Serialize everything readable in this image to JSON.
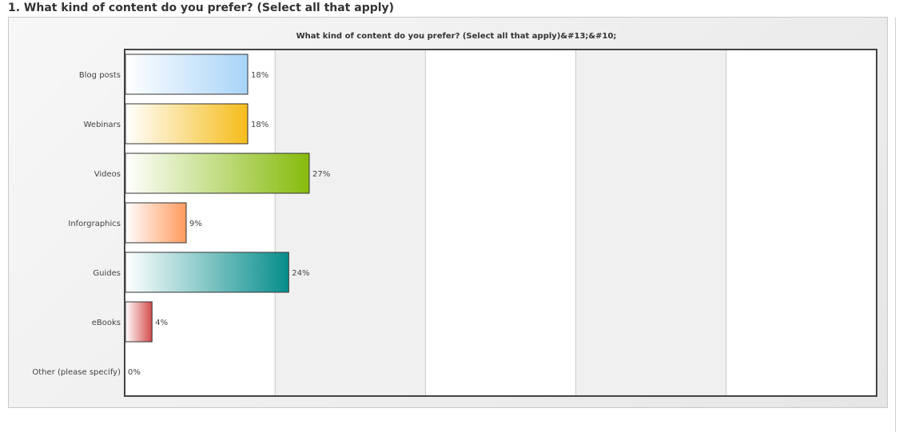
{
  "question": {
    "title": "1. What kind of content do you prefer? (Select all that apply)"
  },
  "chart_data": {
    "type": "bar",
    "orientation": "horizontal",
    "title": "What kind of content do you prefer? (Select all that apply)&#13;&#10;",
    "categories": [
      "Blog posts",
      "Webinars",
      "Videos",
      "Inforgraphics",
      "Guides",
      "eBooks",
      "Other (please specify)"
    ],
    "values": [
      18,
      18,
      27,
      9,
      24,
      4,
      0
    ],
    "value_labels": [
      "18%",
      "18%",
      "27%",
      "9%",
      "24%",
      "4%",
      "0%"
    ],
    "unit": "%",
    "xlim": [
      0,
      110
    ],
    "vertical_gridlines_at": [
      22,
      44,
      66,
      88
    ],
    "alternating_bands": true,
    "colors": [
      "#a8d4f8",
      "#f5bc1a",
      "#86bb0c",
      "#ff9a5e",
      "#068d8b",
      "#d44a4a",
      "#cccccc"
    ],
    "grid": true,
    "legend": "none"
  }
}
